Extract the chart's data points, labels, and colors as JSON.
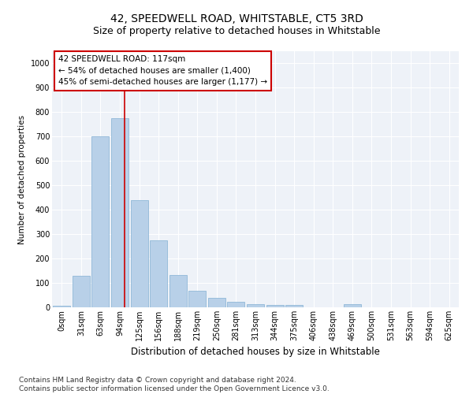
{
  "title": "42, SPEEDWELL ROAD, WHITSTABLE, CT5 3RD",
  "subtitle": "Size of property relative to detached houses in Whitstable",
  "xlabel": "Distribution of detached houses by size in Whitstable",
  "ylabel": "Number of detached properties",
  "categories": [
    "0sqm",
    "31sqm",
    "63sqm",
    "94sqm",
    "125sqm",
    "156sqm",
    "188sqm",
    "219sqm",
    "250sqm",
    "281sqm",
    "313sqm",
    "344sqm",
    "375sqm",
    "406sqm",
    "438sqm",
    "469sqm",
    "500sqm",
    "531sqm",
    "563sqm",
    "594sqm",
    "625sqm"
  ],
  "values": [
    8,
    128,
    700,
    775,
    440,
    275,
    133,
    68,
    38,
    22,
    12,
    10,
    10,
    0,
    0,
    13,
    0,
    0,
    0,
    0,
    0
  ],
  "bar_color": "#b8d0e8",
  "bar_edge_color": "#90b8d8",
  "vline_color": "#cc0000",
  "annotation_text": "42 SPEEDWELL ROAD: 117sqm\n← 54% of detached houses are smaller (1,400)\n45% of semi-detached houses are larger (1,177) →",
  "annotation_box_color": "#ffffff",
  "annotation_box_edge": "#cc0000",
  "ylim": [
    0,
    1050
  ],
  "yticks": [
    0,
    100,
    200,
    300,
    400,
    500,
    600,
    700,
    800,
    900,
    1000
  ],
  "background_color": "#eef2f8",
  "footer_line1": "Contains HM Land Registry data © Crown copyright and database right 2024.",
  "footer_line2": "Contains public sector information licensed under the Open Government Licence v3.0.",
  "title_fontsize": 10,
  "subtitle_fontsize": 9,
  "xlabel_fontsize": 8.5,
  "ylabel_fontsize": 7.5,
  "tick_fontsize": 7,
  "annotation_fontsize": 7.5,
  "footer_fontsize": 6.5
}
